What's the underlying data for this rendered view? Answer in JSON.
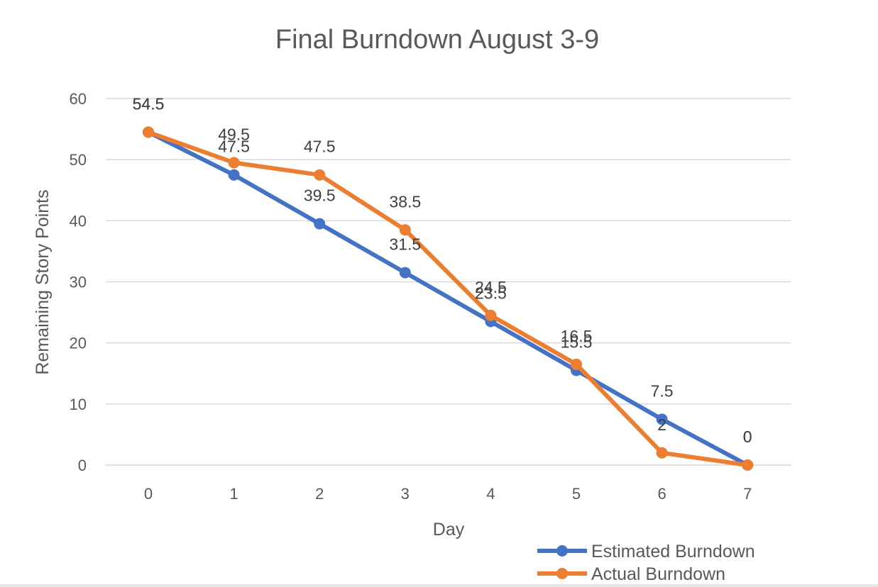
{
  "chart_data": {
    "type": "line",
    "title": "Final Burndown August 3-9",
    "xlabel": "Day",
    "ylabel": "Remaining Story Points",
    "x": [
      0,
      1,
      2,
      3,
      4,
      5,
      6,
      7
    ],
    "ylim": [
      0,
      60
    ],
    "yticks": [
      0,
      10,
      20,
      30,
      40,
      50,
      60
    ],
    "grid": true,
    "legend": "bottom-right",
    "series": [
      {
        "name": "Estimated Burndown",
        "color": "#4472C4",
        "values": [
          54.5,
          47.5,
          39.5,
          31.5,
          23.5,
          15.5,
          7.5,
          0
        ]
      },
      {
        "name": "Actual Burndown",
        "color": "#ED7D31",
        "values": [
          54.5,
          49.5,
          47.5,
          38.5,
          24.5,
          16.5,
          2,
          0
        ]
      }
    ]
  }
}
